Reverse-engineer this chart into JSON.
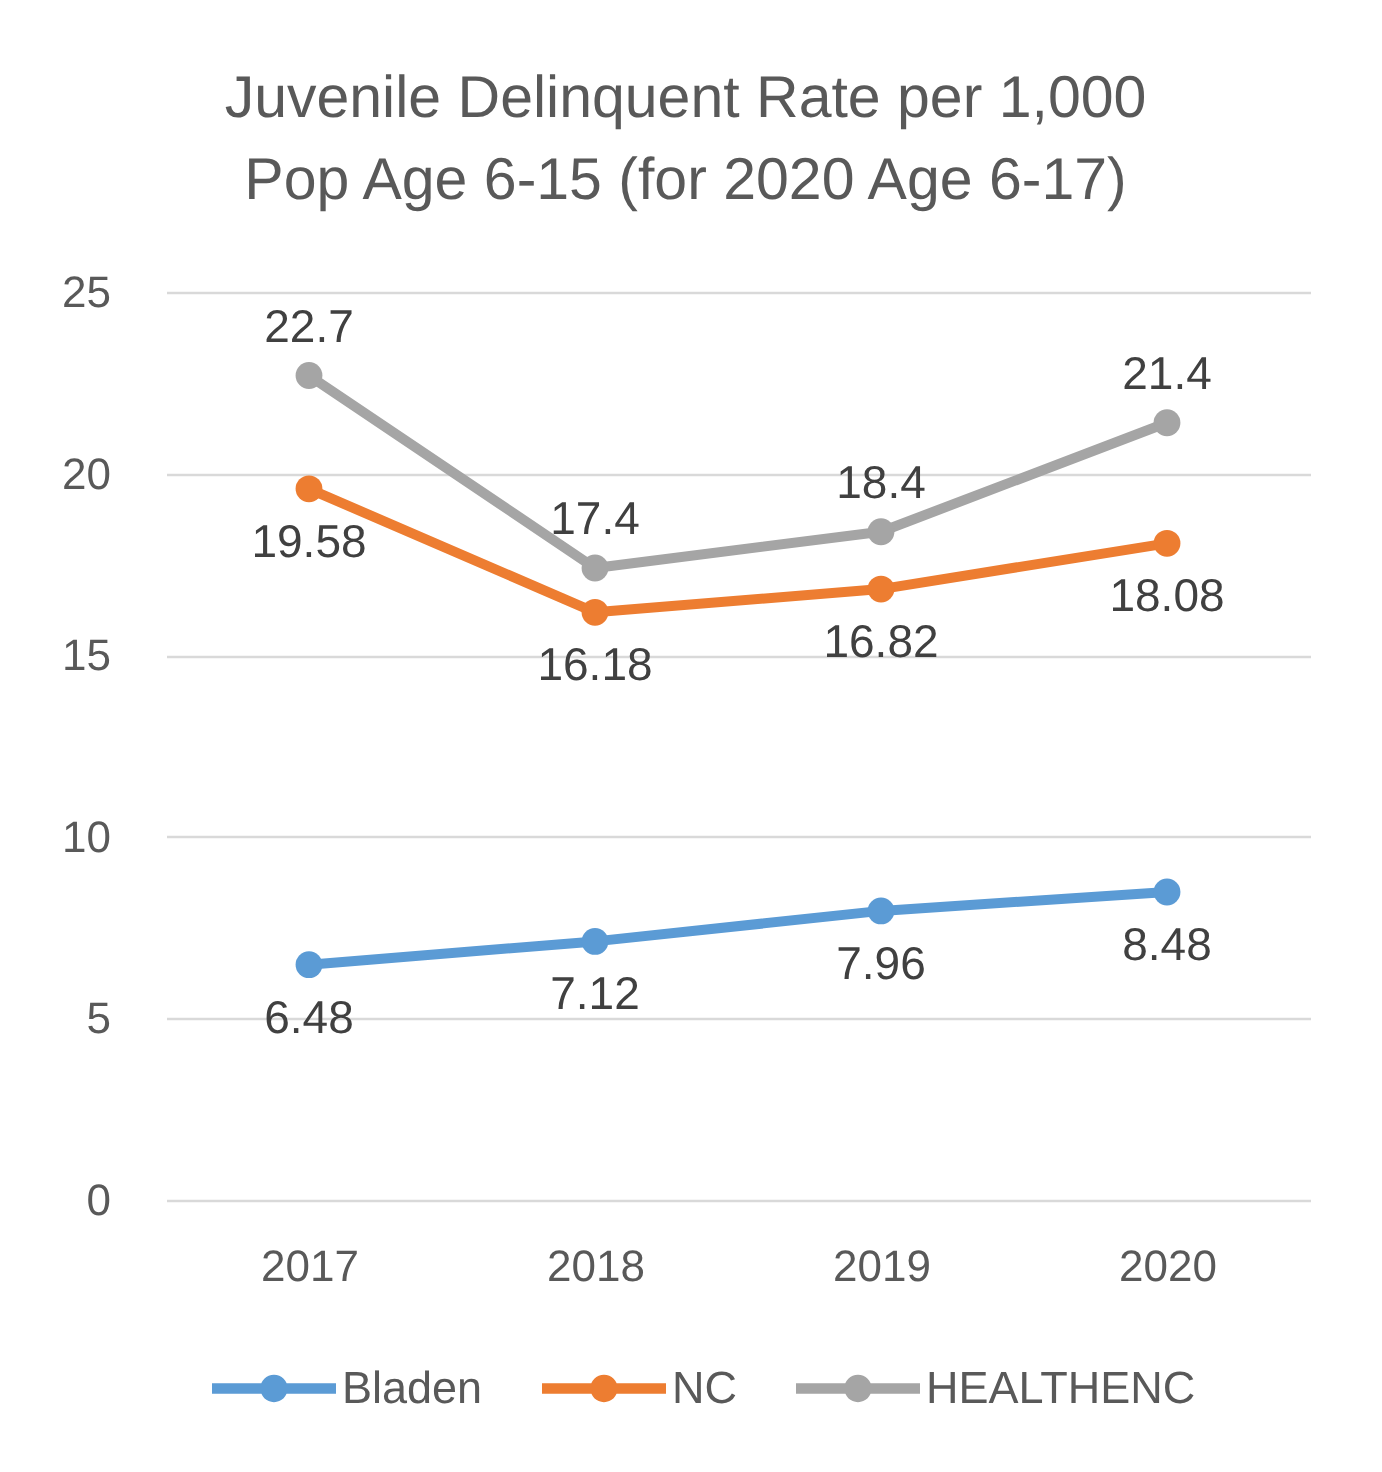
{
  "chart_data": {
    "type": "line",
    "title": "Juvenile Delinquent Rate per 1,000 Pop Age 6-15 (for 2020 Age 6-17)",
    "categories": [
      "2017",
      "2018",
      "2019",
      "2020"
    ],
    "series": [
      {
        "name": "Bladen",
        "color": "#5b9bd5",
        "values": [
          6.48,
          7.12,
          7.96,
          8.48
        ]
      },
      {
        "name": "NC",
        "color": "#ed7d31",
        "values": [
          19.58,
          16.18,
          16.82,
          18.08
        ]
      },
      {
        "name": "HEALTHENC",
        "color": "#a5a5a5",
        "values": [
          22.7,
          17.4,
          18.4,
          21.4
        ]
      }
    ],
    "ylim": [
      0,
      25
    ],
    "yticks": [
      0,
      5,
      10,
      15,
      20,
      25
    ],
    "grid": "y",
    "legend": "bottom",
    "marker": "circle",
    "line_style": "solid",
    "data_labels": true
  }
}
